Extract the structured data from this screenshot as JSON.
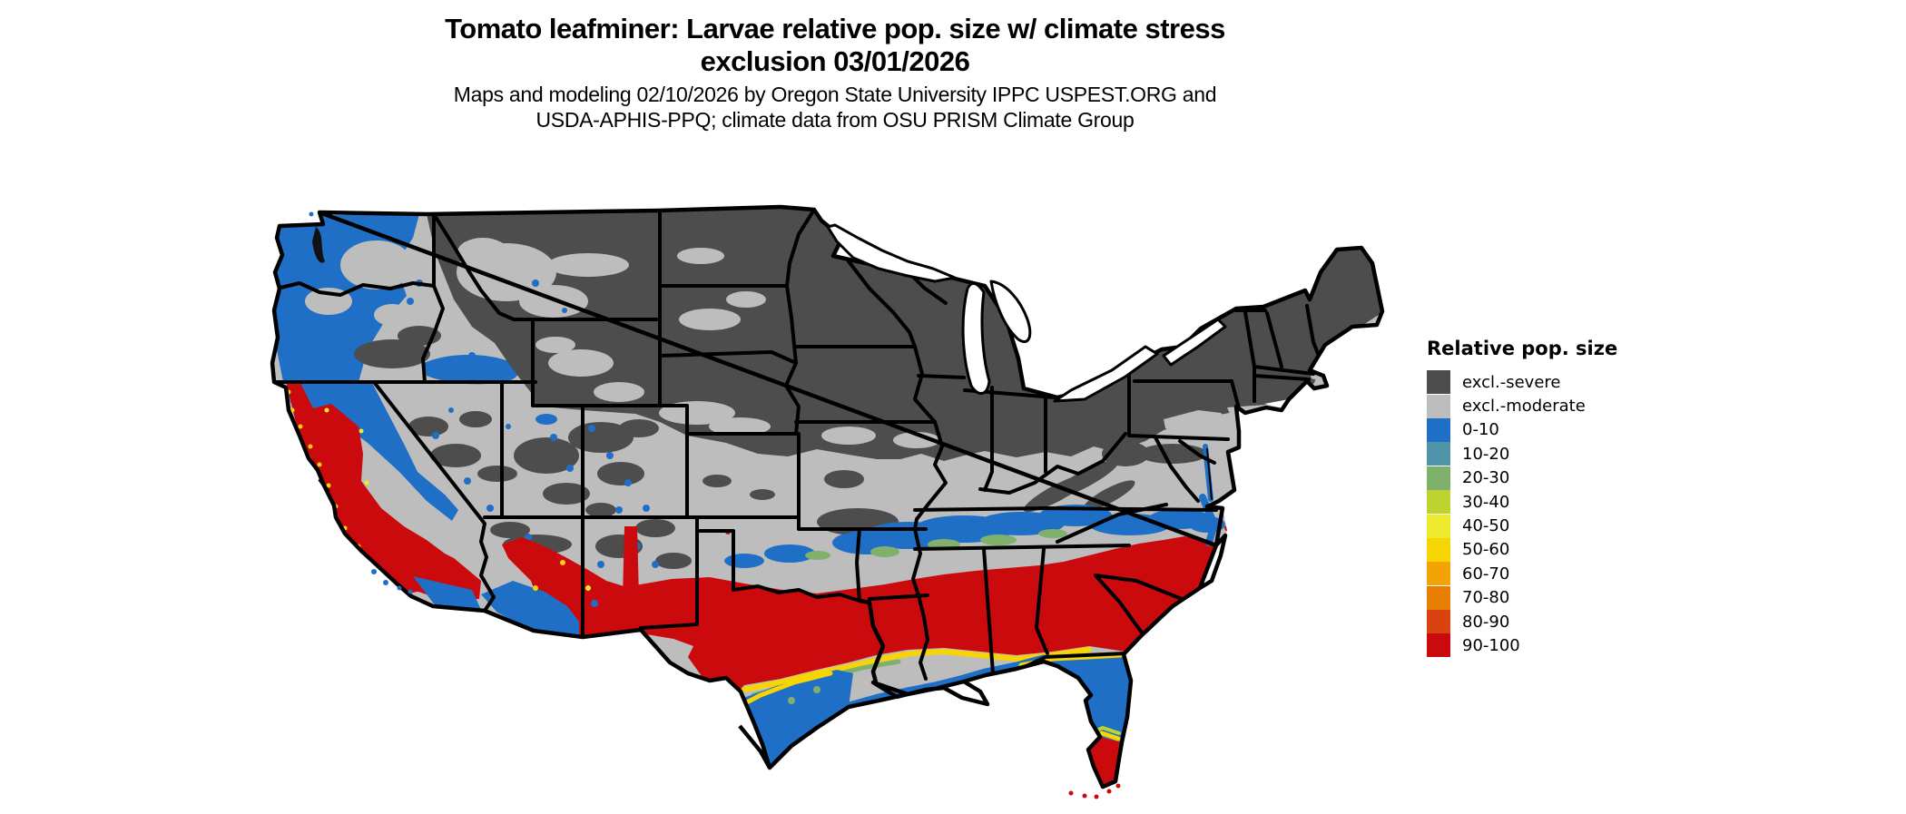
{
  "title": {
    "line1": "Tomato leafminer: Larvae relative pop. size w/ climate stress",
    "line2": "exclusion 03/01/2026"
  },
  "subtitle": {
    "line1": "Maps and modeling 02/10/2026 by Oregon State University IPPC USPEST.ORG and",
    "line2": "USDA-APHIS-PPQ; climate data from OSU PRISM Climate Group"
  },
  "legend": {
    "title": "Relative pop. size",
    "items": [
      {
        "label": "excl.-severe",
        "key": "excl_severe"
      },
      {
        "label": "excl.-moderate",
        "key": "excl_moderate"
      },
      {
        "label": "0-10",
        "key": "v0_10"
      },
      {
        "label": "10-20",
        "key": "v10_20"
      },
      {
        "label": "20-30",
        "key": "v20_30"
      },
      {
        "label": "30-40",
        "key": "v30_40"
      },
      {
        "label": "40-50",
        "key": "v40_50"
      },
      {
        "label": "50-60",
        "key": "v50_60"
      },
      {
        "label": "60-70",
        "key": "v60_70"
      },
      {
        "label": "70-80",
        "key": "v70_80"
      },
      {
        "label": "80-90",
        "key": "v80_90"
      },
      {
        "label": "90-100",
        "key": "v90_100"
      }
    ]
  },
  "palette": {
    "excl_severe": "#4d4d4d",
    "excl_moderate": "#bdbdbd",
    "v0_10": "#1e6fc5",
    "v10_20": "#4e93a8",
    "v20_30": "#7fb06c",
    "v30_40": "#bdd32f",
    "v40_50": "#edea2e",
    "v50_60": "#f7d403",
    "v60_70": "#f4a306",
    "v70_80": "#e87d04",
    "v80_90": "#da430f",
    "v90_100": "#cb0a0e",
    "coastline": "#000000",
    "water": "#ffffff"
  },
  "map": {
    "extent": "Contiguous United States",
    "kind": "raster choropleth, 12 classes"
  }
}
